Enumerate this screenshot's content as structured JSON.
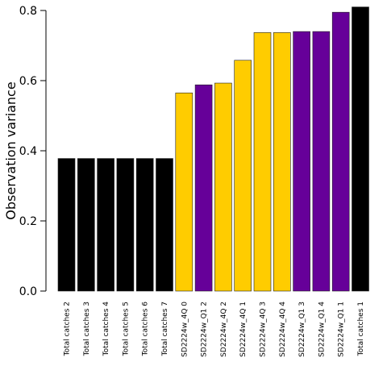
{
  "chart_data": {
    "type": "bar",
    "ylabel": "Observation variance",
    "xlabel": "",
    "ylim": [
      0,
      0.8
    ],
    "yticks": [
      0.0,
      0.2,
      0.4,
      0.6,
      0.8
    ],
    "ytick_labels": [
      "0.0",
      "0.2",
      "0.4",
      "0.6",
      "0.8"
    ],
    "categories": [
      "Total catches 2",
      "Total catches 3",
      "Total catches 4",
      "Total catches 5",
      "Total catches 6",
      "Total catches 7",
      "SD2224w_4Q 0",
      "SD2224w_Q1 2",
      "SD2224w_4Q 2",
      "SD2224w_4Q 1",
      "SD2224w_4Q 3",
      "SD2224w_4Q 4",
      "SD2224w_Q1 3",
      "SD2224w_Q1 4",
      "SD2224w_Q1 1",
      "Total catches 1"
    ],
    "values": [
      0.378,
      0.378,
      0.378,
      0.378,
      0.378,
      0.378,
      0.565,
      0.588,
      0.593,
      0.658,
      0.737,
      0.737,
      0.74,
      0.74,
      0.795,
      0.81
    ],
    "colors": [
      "#000000",
      "#000000",
      "#000000",
      "#000000",
      "#000000",
      "#000000",
      "#FFCC00",
      "#660099",
      "#FFCC00",
      "#FFCC00",
      "#FFCC00",
      "#FFCC00",
      "#660099",
      "#660099",
      "#660099",
      "#000000"
    ],
    "grid": false
  }
}
